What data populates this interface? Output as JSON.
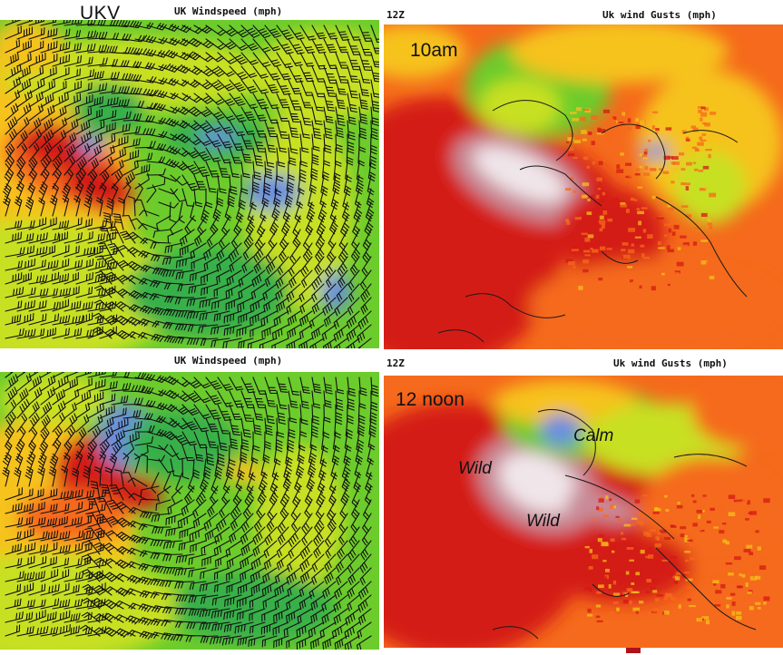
{
  "model_label": "UKV",
  "panels": [
    {
      "id": "windspeed-10am",
      "header_left": "",
      "header_right": "UK Windspeed (mph)",
      "time_label": ""
    },
    {
      "id": "gusts-10am",
      "header_left": "12Z",
      "header_right": "Uk wind Gusts (mph)",
      "time_label": "10am"
    },
    {
      "id": "windspeed-noon",
      "header_left": "",
      "header_right": "UK Windspeed (mph)",
      "time_label": ""
    },
    {
      "id": "gusts-noon",
      "header_left": "12Z",
      "header_right": "Uk wind Gusts (mph)",
      "time_label": "12 noon"
    }
  ],
  "annotations": {
    "calm": "Calm",
    "wild_left": "Wild",
    "wild_center": "Wild"
  },
  "colors": {
    "strongest": "#f0e6ea",
    "very_strong": "#c98a96",
    "strong": "#d41a14",
    "moderate": "#f56a1c",
    "fresh": "#f6c21a",
    "light": "#c8e020",
    "breeze": "#6ccc2c",
    "gentle": "#38b04a",
    "calm": "#6a8ee0",
    "barb": "#111111",
    "coast": "#1a1a1a"
  }
}
